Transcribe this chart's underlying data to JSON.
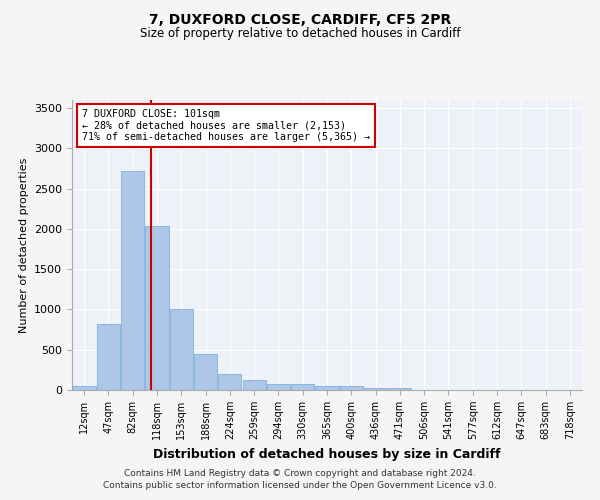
{
  "title1": "7, DUXFORD CLOSE, CARDIFF, CF5 2PR",
  "title2": "Size of property relative to detached houses in Cardiff",
  "xlabel": "Distribution of detached houses by size in Cardiff",
  "ylabel": "Number of detached properties",
  "categories": [
    "12sqm",
    "47sqm",
    "82sqm",
    "118sqm",
    "153sqm",
    "188sqm",
    "224sqm",
    "259sqm",
    "294sqm",
    "330sqm",
    "365sqm",
    "400sqm",
    "436sqm",
    "471sqm",
    "506sqm",
    "541sqm",
    "577sqm",
    "612sqm",
    "647sqm",
    "683sqm",
    "718sqm"
  ],
  "values": [
    50,
    820,
    2720,
    2040,
    1000,
    450,
    200,
    130,
    70,
    70,
    50,
    50,
    30,
    30,
    5,
    3,
    2,
    2,
    1,
    1,
    1
  ],
  "bar_color": "#aec6e8",
  "bar_edge_color": "#6aaad4",
  "red_line_x": 2.74,
  "annotation_line1": "7 DUXFORD CLOSE: 101sqm",
  "annotation_line2": "← 28% of detached houses are smaller (2,153)",
  "annotation_line3": "71% of semi-detached houses are larger (5,365) →",
  "annotation_box_color": "#ffffff",
  "annotation_box_edge": "#cc0000",
  "ylim": [
    0,
    3600
  ],
  "yticks": [
    0,
    500,
    1000,
    1500,
    2000,
    2500,
    3000,
    3500
  ],
  "background_color": "#eef2f8",
  "grid_color": "#ffffff",
  "footer1": "Contains HM Land Registry data © Crown copyright and database right 2024.",
  "footer2": "Contains public sector information licensed under the Open Government Licence v3.0."
}
